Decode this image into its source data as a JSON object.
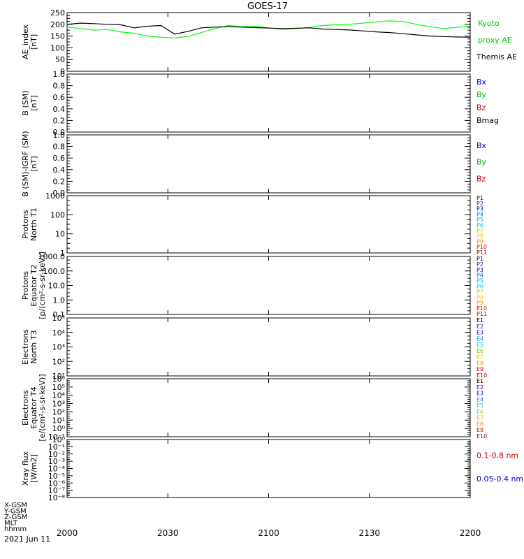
{
  "title": "GOES-17",
  "date": "2021 Jun 11",
  "x_axis": {
    "row_labels": [
      "X-GSM",
      "Y-GSM",
      "Z-GSM",
      "MLT",
      "hhmm"
    ],
    "ticks": [
      "2000",
      "2030",
      "2100",
      "2130",
      "2200"
    ]
  },
  "panels": [
    {
      "id": "ae",
      "ylabel_lines": [
        "AE_index",
        "[nT]"
      ],
      "y_ticks": [
        "0",
        "50",
        "100",
        "150",
        "200",
        "250"
      ],
      "legend": [
        {
          "text": "Kyoto",
          "color": "#00cc00"
        },
        {
          "text": "proxy AE",
          "color": "#00cc00"
        },
        {
          "text": "Themis AE",
          "color": "#000000"
        }
      ]
    },
    {
      "id": "bsm",
      "ylabel_lines": [
        "B (SM)",
        "[nT]"
      ],
      "y_ticks": [
        "0.0",
        "0.2",
        "0.4",
        "0.6",
        "0.8",
        "1.0"
      ],
      "legend": [
        {
          "text": "Bx",
          "color": "#0000cc"
        },
        {
          "text": "By",
          "color": "#00bb00"
        },
        {
          "text": "Bz",
          "color": "#cc0000"
        },
        {
          "text": "Bmag",
          "color": "#000000"
        }
      ]
    },
    {
      "id": "bigrf",
      "ylabel_lines": [
        "B (SM)-IGRF (SM)",
        "[nT]"
      ],
      "y_ticks": [
        "0.0",
        "0.2",
        "0.4",
        "0.6",
        "0.8",
        "1.0"
      ],
      "legend": [
        {
          "text": "Bx",
          "color": "#0000cc"
        },
        {
          "text": "By",
          "color": "#00bb00"
        },
        {
          "text": "Bz",
          "color": "#cc0000"
        }
      ]
    },
    {
      "id": "pn",
      "ylabel_lines": [
        "Protons",
        "North T1"
      ],
      "y_ticks": [
        "1",
        "10",
        "100",
        "1000"
      ],
      "legend": [
        {
          "text": "P1",
          "color": "#000000"
        },
        {
          "text": "P2",
          "color": "#660099"
        },
        {
          "text": "P3",
          "color": "#0000cc"
        },
        {
          "text": "P4",
          "color": "#0066ff"
        },
        {
          "text": "P5",
          "color": "#00aaff"
        },
        {
          "text": "P6",
          "color": "#00cccc"
        },
        {
          "text": "P7",
          "color": "#cccc00"
        },
        {
          "text": "P8",
          "color": "#ffcc00"
        },
        {
          "text": "P9",
          "color": "#ff8800"
        },
        {
          "text": "P10",
          "color": "#dd0000"
        },
        {
          "text": "P11",
          "color": "#aa0000"
        }
      ]
    },
    {
      "id": "pe",
      "ylabel_lines": [
        "Protons",
        "Equator T2",
        "[p/(cm²-s-sr-keV)]"
      ],
      "y_ticks": [
        "0.1",
        "1.0",
        "10.0",
        "100.0",
        "1000.0"
      ],
      "legend": [
        {
          "text": "P1",
          "color": "#000000"
        },
        {
          "text": "P2",
          "color": "#660099"
        },
        {
          "text": "P3",
          "color": "#0000cc"
        },
        {
          "text": "P4",
          "color": "#0066ff"
        },
        {
          "text": "P5",
          "color": "#00aaff"
        },
        {
          "text": "P6",
          "color": "#00cccc"
        },
        {
          "text": "P7",
          "color": "#cccc00"
        },
        {
          "text": "P8",
          "color": "#ffcc00"
        },
        {
          "text": "P9",
          "color": "#ff8800"
        },
        {
          "text": "P10",
          "color": "#dd0000"
        },
        {
          "text": "P11",
          "color": "#aa0000"
        }
      ]
    },
    {
      "id": "en",
      "ylabel_lines": [
        "Electrons",
        "North T3"
      ],
      "y_ticks": [
        "10¹",
        "10²",
        "10³",
        "10⁴",
        "10⁵"
      ],
      "legend": [
        {
          "text": "E1",
          "color": "#000000"
        },
        {
          "text": "E2",
          "color": "#660099"
        },
        {
          "text": "E3",
          "color": "#0000cc"
        },
        {
          "text": "E4",
          "color": "#0088ff"
        },
        {
          "text": "E5",
          "color": "#00cccc"
        },
        {
          "text": "E6",
          "color": "#88cc00"
        },
        {
          "text": "E7",
          "color": "#cccc00"
        },
        {
          "text": "E8",
          "color": "#ff8800"
        },
        {
          "text": "E9",
          "color": "#dd0000"
        },
        {
          "text": "E10",
          "color": "#aa0000"
        }
      ]
    },
    {
      "id": "ee",
      "ylabel_lines": [
        "Electrons",
        "Equator T4",
        "[e/(cm²-s-sr-keV)]"
      ],
      "y_ticks": [
        "10⁻¹",
        "10⁰",
        "10¹",
        "10²",
        "10³",
        "10⁴",
        "10⁵",
        "10⁶"
      ],
      "legend": [
        {
          "text": "E1",
          "color": "#000000"
        },
        {
          "text": "E2",
          "color": "#660099"
        },
        {
          "text": "E3",
          "color": "#0000cc"
        },
        {
          "text": "E4",
          "color": "#0088ff"
        },
        {
          "text": "E5",
          "color": "#00cccc"
        },
        {
          "text": "E6",
          "color": "#88cc00"
        },
        {
          "text": "E7",
          "color": "#cccc00"
        },
        {
          "text": "E8",
          "color": "#ff8800"
        },
        {
          "text": "E9",
          "color": "#dd0000"
        },
        {
          "text": "E10",
          "color": "#aa0000"
        }
      ]
    },
    {
      "id": "xray",
      "ylabel_lines": [
        "Xray flux",
        "[W/m2]"
      ],
      "y_ticks": [
        "10⁻⁸",
        "10⁻⁷",
        "10⁻⁶",
        "10⁻⁵",
        "10⁻⁴",
        "10⁻³",
        "10⁻²",
        "10⁻¹",
        "10⁰"
      ],
      "legend": [
        {
          "text": "0.1-0.8 nm",
          "color": "#cc0000"
        },
        {
          "text": "0.05-0.4 nm",
          "color": "#0000cc"
        }
      ]
    }
  ],
  "chart_data": {
    "type": "line",
    "title": "GOES-17",
    "xlabel": "hhmm",
    "x_ticks": [
      "2000",
      "2030",
      "2100",
      "2130",
      "2200"
    ],
    "ylabel": "AE_index [nT]",
    "ylim": [
      0,
      250
    ],
    "grid": false,
    "series": [
      {
        "name": "Kyoto proxy AE",
        "color": "#00ff00",
        "x": [
          "2000",
          "2004",
          "2008",
          "2012",
          "2016",
          "2020",
          "2024",
          "2028",
          "2032",
          "2036",
          "2040",
          "2044",
          "2048",
          "2052",
          "2056",
          "2100",
          "2104",
          "2108",
          "2112",
          "2116",
          "2120",
          "2124",
          "2128",
          "2132",
          "2136",
          "2140",
          "2144",
          "2148",
          "2152",
          "2156",
          "2200"
        ],
        "values": [
          188,
          182,
          175,
          178,
          168,
          162,
          150,
          145,
          142,
          148,
          165,
          182,
          195,
          190,
          192,
          185,
          178,
          182,
          186,
          195,
          198,
          200,
          205,
          210,
          215,
          212,
          200,
          190,
          182,
          187,
          192
        ]
      },
      {
        "name": "Themis AE",
        "color": "#000000",
        "x": [
          "2000",
          "2004",
          "2008",
          "2012",
          "2016",
          "2020",
          "2024",
          "2028",
          "2032",
          "2036",
          "2040",
          "2044",
          "2048",
          "2052",
          "2056",
          "2100",
          "2104",
          "2108",
          "2112",
          "2116",
          "2120",
          "2124",
          "2128",
          "2132",
          "2136",
          "2140",
          "2144",
          "2148",
          "2152",
          "2156",
          "2200"
        ],
        "values": [
          200,
          205,
          203,
          200,
          198,
          185,
          192,
          195,
          158,
          170,
          185,
          188,
          190,
          188,
          186,
          184,
          182,
          183,
          185,
          180,
          178,
          176,
          172,
          168,
          165,
          160,
          155,
          150,
          148,
          146,
          145
        ]
      }
    ]
  }
}
